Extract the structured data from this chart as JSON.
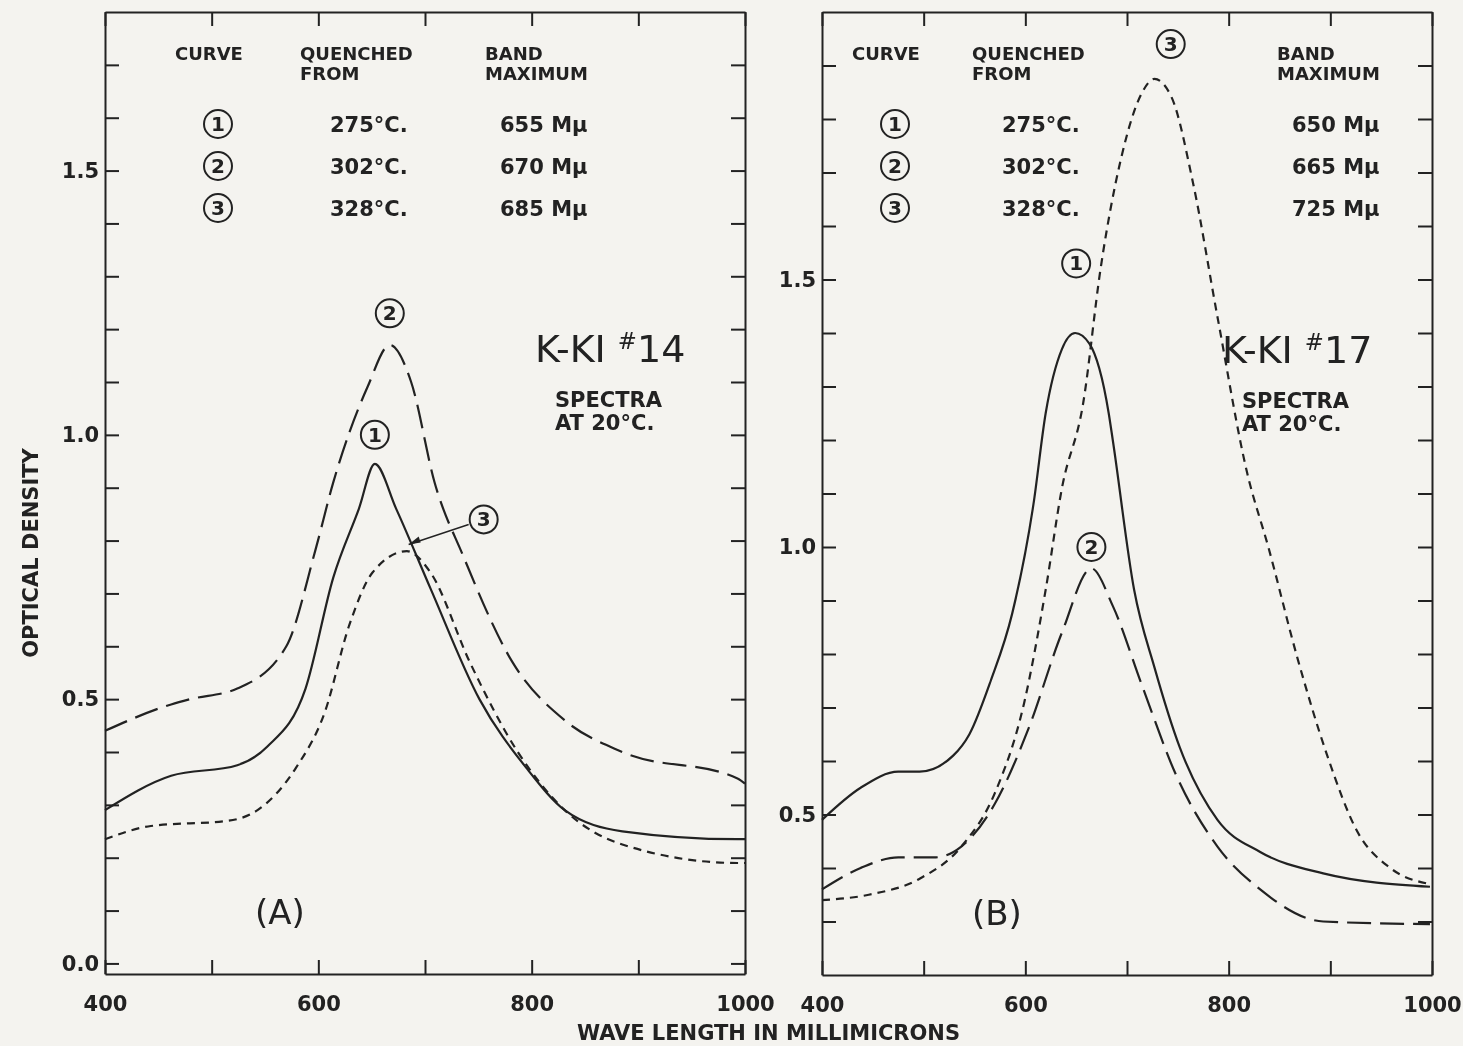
{
  "chart_data": [
    {
      "type": "line",
      "xlabel": "WAVE LENGTH IN MILLIMICRONS",
      "ylabel": "OPTICAL DENSITY",
      "xlim": [
        400,
        1000
      ],
      "ylim": [
        -0.02,
        1.8
      ],
      "xticks": [
        400,
        {
          "value": 500,
          "label": null
        },
        600,
        {
          "value": 700,
          "label": null
        },
        800,
        {
          "value": 900,
          "label": null
        },
        1000
      ],
      "yticks": [
        {
          "value": 0,
          "label": "0.0"
        },
        {
          "value": 0.1,
          "label": null
        },
        {
          "value": 0.2,
          "label": null
        },
        {
          "value": 0.3,
          "label": null
        },
        {
          "value": 0.4,
          "label": null
        },
        {
          "value": 0.5,
          "label": "0.5"
        },
        {
          "value": 0.6,
          "label": null
        },
        {
          "value": 0.7,
          "label": null
        },
        {
          "value": 0.8,
          "label": null
        },
        {
          "value": 0.9,
          "label": null
        },
        {
          "value": 1,
          "label": "1.0"
        },
        {
          "value": 1.1,
          "label": null
        },
        {
          "value": 1.2,
          "label": null
        },
        {
          "value": 1.3,
          "label": null
        },
        {
          "value": 1.4,
          "label": null
        },
        {
          "value": 1.5,
          "label": "1.5"
        },
        {
          "value": 1.6,
          "label": null
        },
        {
          "value": 1.7,
          "label": null
        }
      ],
      "series": [
        {
          "color": "#222222",
          "line_style": "solid",
          "x": [
            400,
            462,
            524,
            552,
            588,
            614,
            638,
            653,
            673,
            705,
            751,
            795,
            831,
            885,
            993,
            1000
          ],
          "values": [
            0.29,
            0.355,
            0.375,
            0.41,
            0.52,
            0.73,
            0.86,
            0.945,
            0.86,
            0.71,
            0.5,
            0.37,
            0.29,
            0.25,
            0.235,
            0.235
          ]
        },
        {
          "color": "#222222",
          "line_style": "dashed",
          "x": [
            400,
            462,
            480,
            524,
            570,
            597,
            614,
            646,
            667,
            687,
            709,
            736,
            782,
            831,
            885,
            993,
            1000
          ],
          "values": [
            0.44,
            0.49,
            0.5,
            0.52,
            0.6,
            0.78,
            0.91,
            1.09,
            1.17,
            1.1,
            0.91,
            0.77,
            0.57,
            0.46,
            0.4,
            0.35,
            0.34
          ]
        },
        {
          "color": "#222222",
          "line_style": "dotted",
          "x": [
            400,
            443,
            516,
            543,
            579,
            606,
            629,
            651,
            683,
            705,
            742,
            787,
            831,
            885,
            993,
            1000
          ],
          "values": [
            0.235,
            0.26,
            0.27,
            0.29,
            0.37,
            0.475,
            0.64,
            0.74,
            0.78,
            0.74,
            0.57,
            0.4,
            0.29,
            0.225,
            0.19,
            0.19
          ]
        }
      ],
      "annotations": [
        "CURVE",
        "QUENCHED\nFROM",
        "BAND\nMAXIMUM",
        "1",
        "275°C.",
        "655 Mμ",
        "2",
        "302°C.",
        "670 Mμ",
        "3",
        "328°C.",
        "685 Mμ",
        "K-KI $^{#}$14",
        "SPECTRA\nAT 20°C.",
        "(A)",
        {
          "text": "1",
          "x": 653,
          "y": 1.0
        },
        {
          "text": "2",
          "x": 667,
          "y": 1.23
        },
        {
          "text": "3",
          "x": 755,
          "y": 0.84
        }
      ]
    },
    {
      "type": "line",
      "xlim": [
        400,
        1000
      ],
      "ylim": [
        0.2,
        2.0
      ],
      "xticks": [
        400,
        {
          "value": 500,
          "label": null
        },
        600,
        {
          "value": 700,
          "label": null
        },
        800,
        {
          "value": 900,
          "label": null
        },
        1000
      ],
      "yticks": [
        {
          "value": 0.3,
          "label": null
        },
        {
          "value": 0.4,
          "label": null
        },
        {
          "value": 0.5,
          "label": "0.5"
        },
        {
          "value": 0.6,
          "label": null
        },
        {
          "value": 0.7,
          "label": null
        },
        {
          "value": 0.8,
          "label": null
        },
        {
          "value": 0.9,
          "label": null
        },
        {
          "value": 1,
          "label": "1.0"
        },
        {
          "value": 1.1,
          "label": null
        },
        {
          "value": 1.2,
          "label": null
        },
        {
          "value": 1.3,
          "label": null
        },
        {
          "value": 1.4,
          "label": null
        },
        {
          "value": 1.5,
          "label": "1.5"
        },
        {
          "value": 1.6,
          "label": null
        },
        {
          "value": 1.7,
          "label": null
        },
        {
          "value": 1.8,
          "label": null
        },
        {
          "value": 1.9,
          "label": null
        }
      ],
      "series": [
        {
          "color": "#222222",
          "line_style": "solid",
          "x": [
            400,
            438,
            475,
            496,
            529,
            545,
            566,
            587,
            608,
            620,
            636,
            649,
            663,
            682,
            686,
            707,
            727,
            752,
            789,
            831,
            893,
            998
          ],
          "values": [
            0.49,
            0.55,
            0.58,
            0.58,
            0.61,
            0.65,
            0.75,
            0.875,
            1.08,
            1.25,
            1.37,
            1.4,
            1.38,
            1.25,
            1.2,
            0.92,
            0.775,
            0.625,
            0.49,
            0.43,
            0.39,
            0.365
          ]
        },
        {
          "color": "#222222",
          "line_style": "dashed",
          "x": [
            400,
            438,
            475,
            512,
            537,
            570,
            603,
            636,
            665,
            686,
            715,
            748,
            789,
            831,
            893,
            998
          ],
          "values": [
            0.36,
            0.4,
            0.42,
            0.42,
            0.44,
            0.52,
            0.66,
            0.84,
            0.96,
            0.89,
            0.74,
            0.575,
            0.44,
            0.36,
            0.3,
            0.295
          ]
        },
        {
          "color": "#222222",
          "line_style": "dotted",
          "x": [
            400,
            446,
            496,
            537,
            570,
            599,
            620,
            636,
            657,
            674,
            694,
            715,
            727,
            744,
            765,
            789,
            818,
            839,
            868,
            897,
            926,
            959,
            998
          ],
          "values": [
            0.34,
            0.35,
            0.38,
            0.44,
            0.54,
            0.71,
            0.92,
            1.11,
            1.27,
            1.52,
            1.725,
            1.85,
            1.875,
            1.84,
            1.68,
            1.43,
            1.14,
            1.0,
            0.79,
            0.61,
            0.47,
            0.4,
            0.37
          ]
        }
      ],
      "annotations": [
        "CURVE",
        "QUENCHED\nFROM",
        "BAND\nMAXIMUM",
        "1",
        "275°C.",
        "650 Mμ",
        "2",
        "302°C.",
        "665 Mμ",
        "3",
        "328°C.",
        "725 Mμ",
        "K-KI $^{#}$17",
        "SPECTRA\nAT 20°C.",
        "(B)",
        {
          "text": "1",
          "x": 650,
          "y": 1.53
        },
        {
          "text": "2",
          "x": 665,
          "y": 1.0
        },
        {
          "text": "3",
          "x": 743,
          "y": 1.94
        }
      ]
    }
  ]
}
